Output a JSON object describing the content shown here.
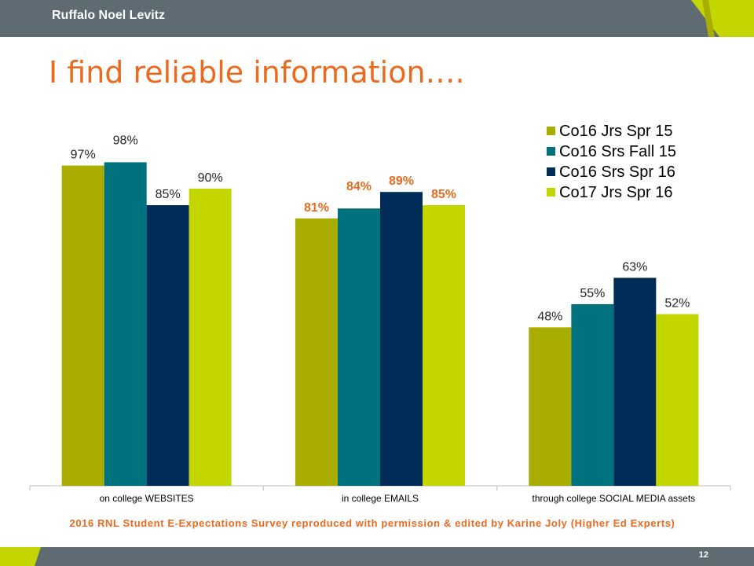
{
  "header": {
    "brand": "Ruffalo Noel Levitz"
  },
  "title": "I find reliable information….",
  "footer": {
    "source": "2016 RNL Student E-Expectations Survey reproduced with permission & edited by Karine Joly (Higher Ed Experts)",
    "page_number": "12"
  },
  "colors": {
    "bar_bg": "#5f6b72",
    "accent_orange": "#ea6a1f",
    "accent_lime": "#c3d600"
  },
  "chart_data": {
    "type": "bar",
    "categories": [
      "on college WEBSITES",
      "in college EMAILS",
      "through college SOCIAL MEDIA assets"
    ],
    "series": [
      {
        "name": "Co16 Jrs Spr 15",
        "color": "#a8ad00",
        "values": [
          97,
          81,
          48
        ]
      },
      {
        "name": "Co16 Srs Fall 15",
        "color": "#00727d",
        "values": [
          98,
          84,
          55
        ]
      },
      {
        "name": "Co16 Srs Spr 16",
        "color": "#002d58",
        "values": [
          85,
          89,
          63
        ]
      },
      {
        "name": "Co17 Jrs Spr 16",
        "color": "#c3d600",
        "values": [
          90,
          85,
          52
        ]
      }
    ],
    "value_labels": [
      [
        "97%",
        "81%",
        "48%"
      ],
      [
        "98%",
        "84%",
        "55%"
      ],
      [
        "85%",
        "89%",
        "63%"
      ],
      [
        "90%",
        "85%",
        "52%"
      ]
    ],
    "highlighted_category_label_color": "#ea6a1f",
    "highlighted_category_index": 1,
    "ylim": [
      0,
      100
    ],
    "grid": false,
    "legend_position": "top-right"
  }
}
